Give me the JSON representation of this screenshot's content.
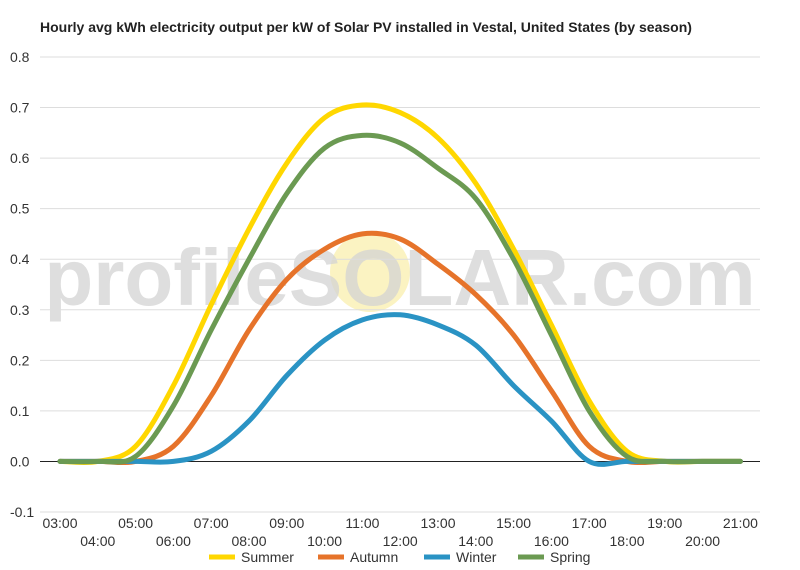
{
  "chart_data": {
    "type": "line",
    "title": "Hourly avg kWh electricity output per kW of Solar PV installed in Vestal, United States (by season)",
    "xlabel": "",
    "ylabel": "",
    "ylim": [
      -0.1,
      0.8
    ],
    "yticks": [
      "-0.1",
      "0.0",
      "0.1",
      "0.2",
      "0.3",
      "0.4",
      "0.5",
      "0.6",
      "0.7",
      "0.8"
    ],
    "x": [
      "03:00",
      "04:00",
      "05:00",
      "06:00",
      "07:00",
      "08:00",
      "09:00",
      "10:00",
      "11:00",
      "12:00",
      "13:00",
      "14:00",
      "15:00",
      "16:00",
      "17:00",
      "18:00",
      "19:00",
      "20:00",
      "21:00"
    ],
    "grid": true,
    "legend_position": "bottom",
    "watermark": "profileSOLAR.com",
    "series": [
      {
        "name": "Summer",
        "color": "#ffd700",
        "values": [
          0.0,
          0.0,
          0.03,
          0.15,
          0.31,
          0.46,
          0.59,
          0.68,
          0.705,
          0.69,
          0.64,
          0.55,
          0.42,
          0.27,
          0.12,
          0.02,
          0.0,
          0.0,
          0.0
        ]
      },
      {
        "name": "Autumn",
        "color": "#e6732a",
        "values": [
          0.0,
          0.0,
          0.0,
          0.03,
          0.13,
          0.26,
          0.36,
          0.42,
          0.45,
          0.44,
          0.39,
          0.33,
          0.25,
          0.14,
          0.03,
          0.0,
          0.0,
          0.0,
          0.0
        ]
      },
      {
        "name": "Winter",
        "color": "#2a93c4",
        "values": [
          0.0,
          0.0,
          0.0,
          0.0,
          0.02,
          0.08,
          0.17,
          0.24,
          0.28,
          0.29,
          0.27,
          0.23,
          0.15,
          0.08,
          0.0,
          0.0,
          0.0,
          0.0,
          0.0
        ]
      },
      {
        "name": "Spring",
        "color": "#6b9a52",
        "values": [
          0.0,
          0.0,
          0.01,
          0.11,
          0.26,
          0.4,
          0.53,
          0.62,
          0.645,
          0.63,
          0.58,
          0.52,
          0.4,
          0.25,
          0.1,
          0.01,
          0.0,
          0.0,
          0.0
        ]
      }
    ]
  }
}
